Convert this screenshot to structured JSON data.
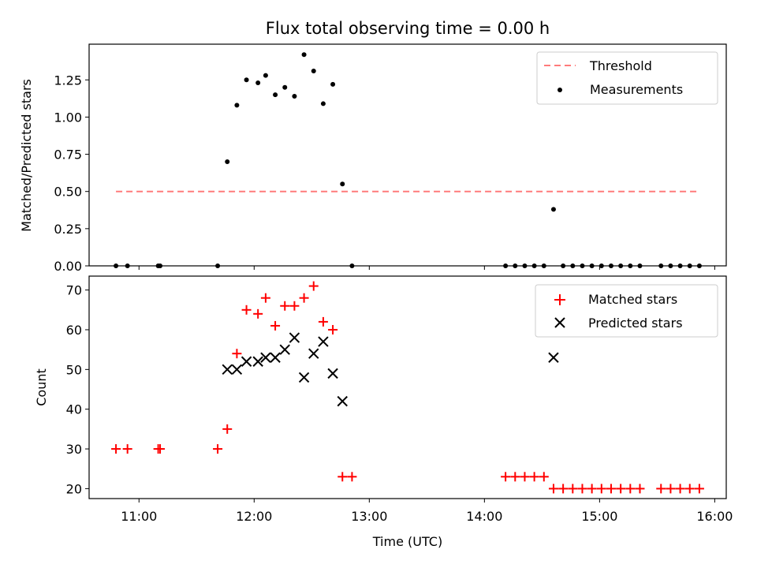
{
  "chart_data": [
    {
      "type": "scatter",
      "title": "Flux total observing time = 0.00 h",
      "xlabel": "",
      "ylabel": "Matched/Predicted stars",
      "xlim": [
        "10:34",
        "16:06"
      ],
      "ylim": [
        0,
        1.49
      ],
      "xticks": [
        "11:00",
        "12:00",
        "13:00",
        "14:00",
        "15:00",
        "16:00"
      ],
      "yticks": [
        "0.00",
        "0.25",
        "0.50",
        "0.75",
        "1.00",
        "1.25"
      ],
      "legend_position": "top-right",
      "threshold": {
        "name": "Threshold",
        "value": 0.5,
        "x_start": "10:48",
        "x_end": "15:52",
        "color": "#ff7b7b"
      },
      "series": [
        {
          "name": "Measurements",
          "color": "#000000",
          "points": [
            [
              "10:48",
              0
            ],
            [
              "10:54",
              0
            ],
            [
              "11:10",
              0
            ],
            [
              "11:11",
              0
            ],
            [
              "11:41",
              0
            ],
            [
              "11:46",
              0.7
            ],
            [
              "11:51",
              1.08
            ],
            [
              "11:56",
              1.25
            ],
            [
              "12:02",
              1.23
            ],
            [
              "12:06",
              1.28
            ],
            [
              "12:11",
              1.15
            ],
            [
              "12:16",
              1.2
            ],
            [
              "12:21",
              1.14
            ],
            [
              "12:26",
              1.42
            ],
            [
              "12:31",
              1.31
            ],
            [
              "12:36",
              1.09
            ],
            [
              "12:41",
              1.22
            ],
            [
              "12:46",
              0.55
            ],
            [
              "12:51",
              0
            ],
            [
              "14:11",
              0
            ],
            [
              "14:16",
              0
            ],
            [
              "14:21",
              0
            ],
            [
              "14:26",
              0
            ],
            [
              "14:31",
              0
            ],
            [
              "14:36",
              0.38
            ],
            [
              "14:41",
              0
            ],
            [
              "14:46",
              0
            ],
            [
              "14:51",
              0
            ],
            [
              "14:56",
              0
            ],
            [
              "15:01",
              0
            ],
            [
              "15:06",
              0
            ],
            [
              "15:11",
              0
            ],
            [
              "15:16",
              0
            ],
            [
              "15:21",
              0
            ],
            [
              "15:32",
              0
            ],
            [
              "15:37",
              0
            ],
            [
              "15:42",
              0
            ],
            [
              "15:47",
              0
            ],
            [
              "15:52",
              0
            ]
          ]
        }
      ]
    },
    {
      "type": "scatter",
      "title": "",
      "xlabel": "Time (UTC)",
      "ylabel": "Count",
      "xlim": [
        "10:34",
        "16:06"
      ],
      "ylim": [
        17.5,
        73.5
      ],
      "xticks": [
        "11:00",
        "12:00",
        "13:00",
        "14:00",
        "15:00",
        "16:00"
      ],
      "yticks": [
        "20",
        "30",
        "40",
        "50",
        "60",
        "70"
      ],
      "legend_position": "top-right",
      "series": [
        {
          "name": "Matched stars",
          "marker": "plus",
          "color": "#ff0000",
          "points": [
            [
              "10:48",
              30
            ],
            [
              "10:54",
              30
            ],
            [
              "11:10",
              30
            ],
            [
              "11:11",
              30
            ],
            [
              "11:41",
              30
            ],
            [
              "11:46",
              35
            ],
            [
              "11:51",
              54
            ],
            [
              "11:56",
              65
            ],
            [
              "12:02",
              64
            ],
            [
              "12:06",
              68
            ],
            [
              "12:11",
              61
            ],
            [
              "12:16",
              66
            ],
            [
              "12:21",
              66
            ],
            [
              "12:26",
              68
            ],
            [
              "12:31",
              71
            ],
            [
              "12:36",
              62
            ],
            [
              "12:41",
              60
            ],
            [
              "12:46",
              23
            ],
            [
              "12:51",
              23
            ],
            [
              "14:11",
              23
            ],
            [
              "14:16",
              23
            ],
            [
              "14:21",
              23
            ],
            [
              "14:26",
              23
            ],
            [
              "14:31",
              23
            ],
            [
              "14:36",
              20
            ],
            [
              "14:41",
              20
            ],
            [
              "14:46",
              20
            ],
            [
              "14:51",
              20
            ],
            [
              "14:56",
              20
            ],
            [
              "15:01",
              20
            ],
            [
              "15:06",
              20
            ],
            [
              "15:11",
              20
            ],
            [
              "15:16",
              20
            ],
            [
              "15:21",
              20
            ],
            [
              "15:32",
              20
            ],
            [
              "15:37",
              20
            ],
            [
              "15:42",
              20
            ],
            [
              "15:47",
              20
            ],
            [
              "15:52",
              20
            ]
          ]
        },
        {
          "name": "Predicted stars",
          "marker": "x",
          "color": "#000000",
          "points": [
            [
              "11:46",
              50
            ],
            [
              "11:51",
              50
            ],
            [
              "11:56",
              52
            ],
            [
              "12:02",
              52
            ],
            [
              "12:06",
              53
            ],
            [
              "12:11",
              53
            ],
            [
              "12:16",
              55
            ],
            [
              "12:21",
              58
            ],
            [
              "12:26",
              48
            ],
            [
              "12:31",
              54
            ],
            [
              "12:36",
              57
            ],
            [
              "12:41",
              49
            ],
            [
              "12:46",
              42
            ],
            [
              "14:36",
              53
            ]
          ]
        }
      ]
    }
  ]
}
